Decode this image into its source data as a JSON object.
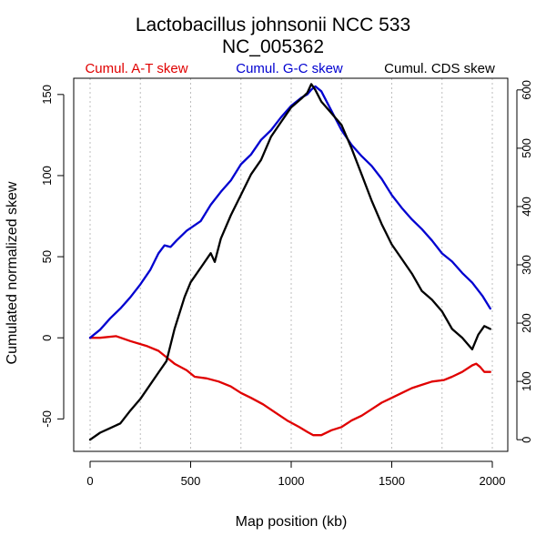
{
  "chart_data": {
    "type": "line",
    "title": "Lactobacillus johnsonii NCC 533",
    "subtitle": "NC_005362",
    "xlabel": "Map position (kb)",
    "ylabel": "Cumulated normalized skew",
    "xlim": [
      0,
      2000
    ],
    "ylim_left": [
      -70,
      160
    ],
    "ylim_right": [
      -20,
      620
    ],
    "x_ticks": [
      0,
      500,
      1000,
      1500,
      2000
    ],
    "y_ticks_left": [
      -50,
      0,
      50,
      100,
      150
    ],
    "y_ticks_right": [
      0,
      100,
      200,
      300,
      400,
      500,
      600
    ],
    "grid_x": [
      0,
      250,
      500,
      750,
      1000,
      1250,
      1500,
      1750,
      2000
    ],
    "legend_placement": "top",
    "series": [
      {
        "name": "Cumul. A-T skew",
        "color": "#e00000",
        "axis": "left",
        "x": [
          0,
          50,
          130,
          200,
          280,
          340,
          380,
          420,
          480,
          520,
          580,
          640,
          700,
          750,
          800,
          860,
          920,
          980,
          1040,
          1080,
          1110,
          1150,
          1200,
          1250,
          1300,
          1350,
          1400,
          1450,
          1500,
          1550,
          1600,
          1650,
          1700,
          1760,
          1800,
          1850,
          1900,
          1920,
          1940,
          1960,
          1990
        ],
        "values": [
          0,
          0,
          1,
          -2,
          -5,
          -8,
          -12,
          -16,
          -20,
          -24,
          -25,
          -27,
          -30,
          -34,
          -37,
          -41,
          -46,
          -51,
          -55,
          -58,
          -60,
          -60,
          -57,
          -55,
          -51,
          -48,
          -44,
          -40,
          -37,
          -34,
          -31,
          -29,
          -27,
          -26,
          -24,
          -21,
          -17,
          -16,
          -18,
          -21,
          -21
        ]
      },
      {
        "name": "Cumul. G-C skew",
        "color": "#0000d0",
        "axis": "left",
        "x": [
          0,
          50,
          100,
          150,
          200,
          250,
          300,
          340,
          370,
          400,
          430,
          480,
          550,
          600,
          650,
          700,
          750,
          800,
          850,
          900,
          950,
          1000,
          1050,
          1080,
          1100,
          1120,
          1150,
          1200,
          1250,
          1300,
          1350,
          1400,
          1450,
          1500,
          1550,
          1600,
          1650,
          1700,
          1750,
          1800,
          1850,
          1900,
          1950,
          1990
        ],
        "values": [
          0,
          5,
          12,
          18,
          25,
          33,
          42,
          52,
          57,
          56,
          60,
          66,
          72,
          82,
          90,
          97,
          107,
          113,
          122,
          128,
          136,
          143,
          148,
          150,
          153,
          155,
          152,
          140,
          128,
          119,
          112,
          106,
          98,
          88,
          80,
          73,
          67,
          60,
          52,
          47,
          40,
          34,
          26,
          18
        ]
      },
      {
        "name": "Cumul. CDS skew",
        "color": "#000000",
        "axis": "right",
        "x": [
          0,
          50,
          100,
          150,
          200,
          250,
          300,
          340,
          380,
          420,
          470,
          500,
          560,
          600,
          620,
          650,
          700,
          750,
          800,
          850,
          900,
          950,
          1000,
          1050,
          1080,
          1100,
          1120,
          1150,
          1200,
          1250,
          1300,
          1350,
          1400,
          1450,
          1500,
          1550,
          1600,
          1650,
          1700,
          1750,
          1800,
          1850,
          1900,
          1930,
          1960,
          1990
        ],
        "values": [
          0,
          12,
          20,
          28,
          50,
          70,
          95,
          115,
          135,
          190,
          245,
          270,
          300,
          320,
          305,
          345,
          385,
          420,
          455,
          480,
          520,
          545,
          570,
          585,
          595,
          610,
          600,
          580,
          560,
          540,
          500,
          455,
          410,
          370,
          335,
          310,
          285,
          255,
          240,
          220,
          190,
          175,
          155,
          180,
          195,
          190
        ]
      }
    ]
  }
}
